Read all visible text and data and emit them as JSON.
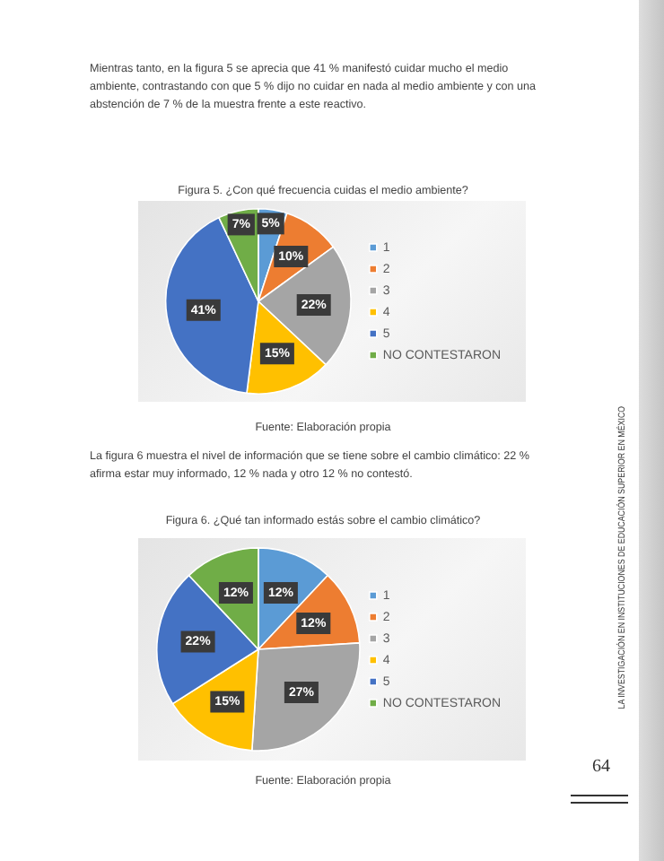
{
  "chart_data": [
    {
      "type": "pie",
      "title": "Figura 5. ¿Con qué frecuencia cuidas el medio ambiente?",
      "categories": [
        "1",
        "2",
        "3",
        "4",
        "5",
        "NO CONTESTARON"
      ],
      "values": [
        5,
        10,
        22,
        15,
        41,
        7
      ],
      "value_labels": [
        "5%",
        "10%",
        "22%",
        "15%",
        "41%",
        "7%"
      ],
      "colors": [
        "#5b9bd5",
        "#ed7d31",
        "#a5a5a5",
        "#ffc000",
        "#4472c4",
        "#70ad47"
      ],
      "legend": "right",
      "annotations": [
        "Mientras tanto, en la figura 5 se aprecia que 41 % manifestó cuidar mucho el medio ambiente, contrastando con que 5 % dijo no cuidar en nada al medio ambiente y con una abstención de 7 % de la muestra frente a este reactivo.",
        "Fuente: Elaboración propia"
      ]
    },
    {
      "type": "pie",
      "title": "Figura 6. ¿Qué tan informado estás sobre el cambio climático?",
      "categories": [
        "1",
        "2",
        "3",
        "4",
        "5",
        "NO CONTESTARON"
      ],
      "values": [
        12,
        12,
        27,
        15,
        22,
        12
      ],
      "value_labels": [
        "12%",
        "12%",
        "27%",
        "15%",
        "22%",
        "12%"
      ],
      "colors": [
        "#5b9bd5",
        "#ed7d31",
        "#a5a5a5",
        "#ffc000",
        "#4472c4",
        "#70ad47"
      ],
      "legend": "right",
      "annotations": [
        "La figura 6 muestra el nivel de información que se tiene sobre el cambio climático: 22 % afirma estar muy informado, 12 % nada y otro 12 % no contestó.",
        "Fuente: Elaboración propia",
        "LA INVESTIGACIÓN EN INSTITUCIONES DE EDUCACIÓN SUPERIOR EN MÉXICO",
        "64"
      ]
    }
  ]
}
